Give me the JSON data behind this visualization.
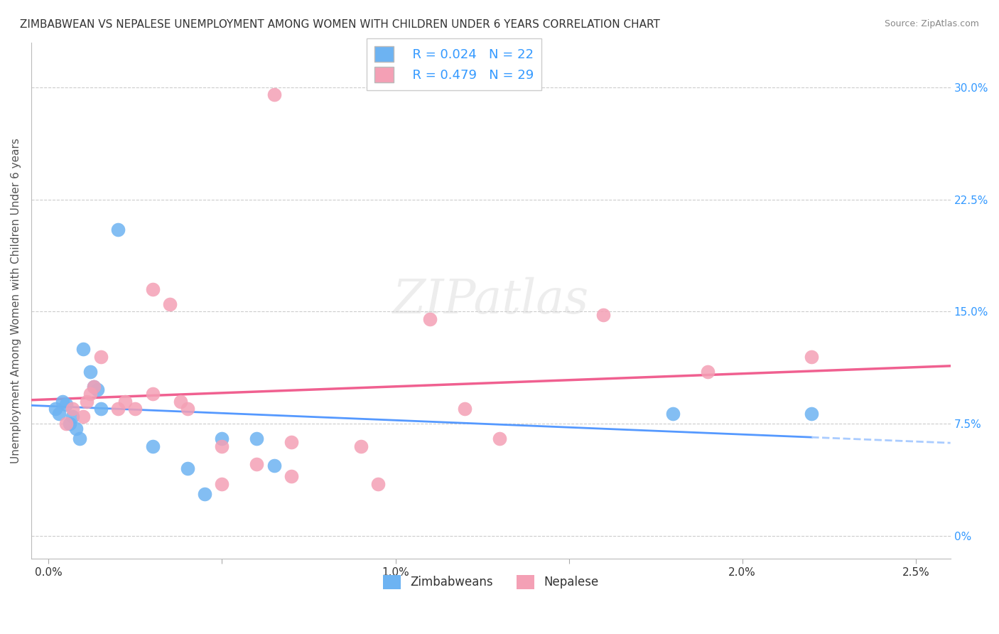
{
  "title": "ZIMBABWEAN VS NEPALESE UNEMPLOYMENT AMONG WOMEN WITH CHILDREN UNDER 6 YEARS CORRELATION CHART",
  "source": "Source: ZipAtlas.com",
  "ylabel": "Unemployment Among Women with Children Under 6 years",
  "right_yticks": [
    0.0,
    0.075,
    0.15,
    0.225,
    0.3
  ],
  "right_ylabels": [
    "0%",
    "7.5%",
    "15.0%",
    "22.5%",
    "30.0%"
  ],
  "xmin": -0.0005,
  "xmax": 0.026,
  "ymin": -0.015,
  "ymax": 0.33,
  "zimbabwe_color": "#6db3f2",
  "nepalese_color": "#f4a0b5",
  "zimbabwe_R": 0.024,
  "zimbabwe_N": 22,
  "nepalese_R": 0.479,
  "nepalese_N": 29,
  "zimbabwe_scatter": [
    [
      0.0002,
      0.085
    ],
    [
      0.0003,
      0.082
    ],
    [
      0.0004,
      0.09
    ],
    [
      0.0005,
      0.088
    ],
    [
      0.0006,
      0.075
    ],
    [
      0.0007,
      0.08
    ],
    [
      0.0008,
      0.072
    ],
    [
      0.0009,
      0.065
    ],
    [
      0.001,
      0.125
    ],
    [
      0.0012,
      0.11
    ],
    [
      0.0013,
      0.1
    ],
    [
      0.0014,
      0.098
    ],
    [
      0.0015,
      0.085
    ],
    [
      0.002,
      0.205
    ],
    [
      0.003,
      0.06
    ],
    [
      0.004,
      0.045
    ],
    [
      0.0045,
      0.028
    ],
    [
      0.005,
      0.065
    ],
    [
      0.006,
      0.065
    ],
    [
      0.0065,
      0.047
    ],
    [
      0.018,
      0.082
    ],
    [
      0.022,
      0.082
    ]
  ],
  "nepalese_scatter": [
    [
      0.0005,
      0.075
    ],
    [
      0.0007,
      0.085
    ],
    [
      0.001,
      0.08
    ],
    [
      0.0011,
      0.09
    ],
    [
      0.0012,
      0.095
    ],
    [
      0.0013,
      0.1
    ],
    [
      0.0015,
      0.12
    ],
    [
      0.002,
      0.085
    ],
    [
      0.0022,
      0.09
    ],
    [
      0.0025,
      0.085
    ],
    [
      0.003,
      0.095
    ],
    [
      0.003,
      0.165
    ],
    [
      0.0035,
      0.155
    ],
    [
      0.0038,
      0.09
    ],
    [
      0.004,
      0.085
    ],
    [
      0.005,
      0.06
    ],
    [
      0.005,
      0.035
    ],
    [
      0.006,
      0.048
    ],
    [
      0.007,
      0.063
    ],
    [
      0.007,
      0.04
    ],
    [
      0.009,
      0.06
    ],
    [
      0.0095,
      0.035
    ],
    [
      0.011,
      0.145
    ],
    [
      0.012,
      0.085
    ],
    [
      0.013,
      0.065
    ],
    [
      0.016,
      0.148
    ],
    [
      0.019,
      0.11
    ],
    [
      0.0065,
      0.295
    ],
    [
      0.022,
      0.12
    ]
  ]
}
